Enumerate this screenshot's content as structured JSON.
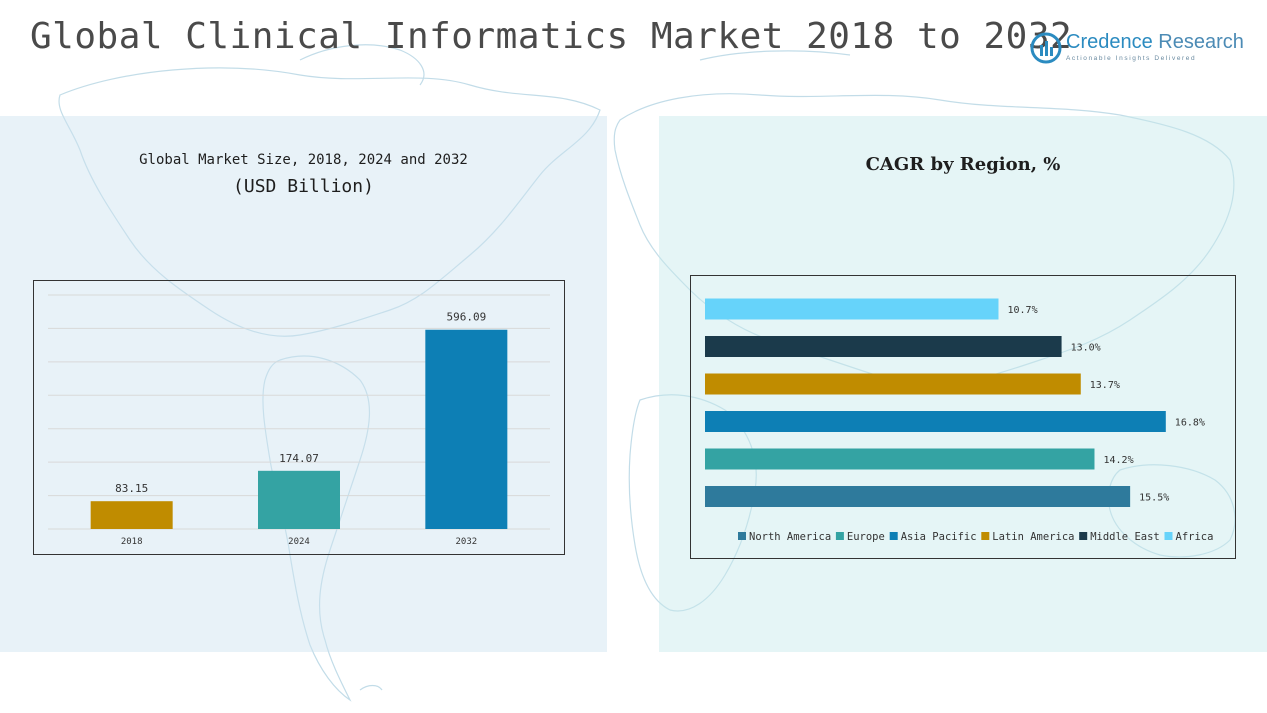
{
  "title": "Global Clinical Informatics Market 2018 to 2032",
  "logo": {
    "name_a": "Credence",
    "name_b": "Research",
    "tagline": "Actionable Insights Delivered"
  },
  "colors": {
    "gold": "#c08c00",
    "teal": "#34a3a3",
    "blue": "#0d7fb5",
    "north_america": "#2e7a9c",
    "asia_pacific": "#0d7fb5",
    "middle_east": "#1b3a4b",
    "africa": "#66d3fa"
  },
  "left_panel": {
    "title_line1": "Global Market Size, 2018, 2024 and 2032",
    "title_line2": "(USD Billion)"
  },
  "right_panel": {
    "title": "CAGR by Region, %"
  },
  "chart_data": [
    {
      "type": "bar",
      "categories": [
        "2018",
        "2024",
        "2032"
      ],
      "values": [
        83.15,
        174.07,
        596.09
      ],
      "value_labels": [
        "83.15",
        "174.07",
        "596.09"
      ],
      "colors": [
        "#c08c00",
        "#34a3a3",
        "#0d7fb5"
      ],
      "ylim": [
        0,
        700
      ],
      "grid": true,
      "legend": "none"
    },
    {
      "type": "bar",
      "orientation": "horizontal",
      "categories": [
        "Africa",
        "Middle East",
        "Latin America",
        "Asia Pacific",
        "Europe",
        "North America"
      ],
      "values": [
        10.7,
        13.0,
        13.7,
        16.8,
        14.2,
        15.5
      ],
      "value_labels": [
        "10.7%",
        "13.0%",
        "13.7%",
        "16.8%",
        "14.2%",
        "15.5%"
      ],
      "colors": [
        "#66d3fa",
        "#1b3a4b",
        "#c08c00",
        "#0d7fb5",
        "#34a3a3",
        "#2e7a9c"
      ],
      "xlim": [
        0,
        17.5
      ],
      "grid": false,
      "legend": "bottom",
      "legend_order": [
        "North America",
        "Europe",
        "Asia Pacific",
        "Latin America",
        "Middle East",
        "Africa"
      ]
    }
  ]
}
